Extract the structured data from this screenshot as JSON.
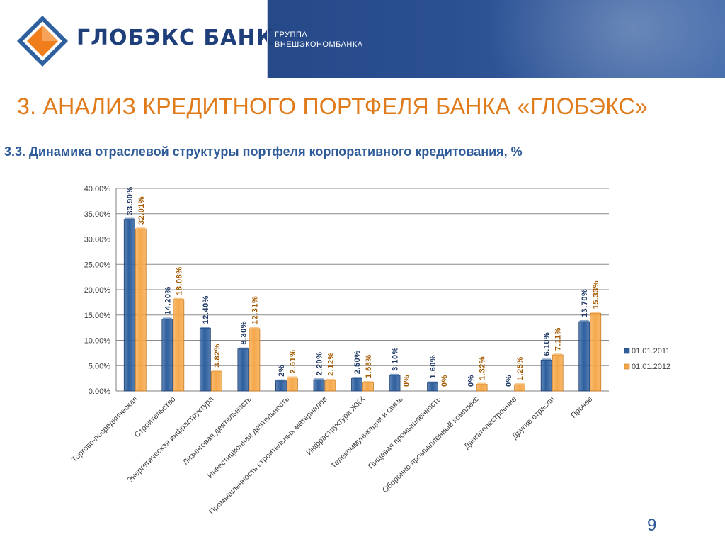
{
  "header": {
    "bank_name": "ГЛОБЭКС БАНК",
    "group_line1": "ГРУППА",
    "group_line2": "ВНЕШЭКОНОМБАНКА"
  },
  "title": "3. АНАЛИЗ КРЕДИТНОГО ПОРТФЕЛЯ БАНКА «ГЛОБЭКС»",
  "subtitle": "3.3. Динамика отраслевой структуры портфеля корпоративного кредитования, %",
  "page_number": "9",
  "chart_data": {
    "type": "bar",
    "categories": [
      "Торгово-посредническая",
      "Строительство",
      "Энергетическая инфраструктура",
      "Лизинговая деятельность",
      "Инвестиционная деятельность",
      "Промышленность строительных материалов",
      "Инфраструктура ЖКХ",
      "Телекоммуникации и связь",
      "Пищевая промышленность",
      "Оборонно-промышленный комплекс",
      "Двигателестроение",
      "Другие отрасли",
      "Прочее"
    ],
    "series": [
      {
        "name": "01.01.2011",
        "color": "#2e5f9e",
        "values": [
          33.9,
          14.2,
          12.4,
          8.3,
          2,
          2.2,
          2.5,
          3.1,
          1.6,
          0,
          0,
          6.1,
          13.7
        ],
        "labels": [
          "33.90%",
          "14.20%",
          "12.40%",
          "8.30%",
          "2%",
          "2.20%",
          "2.50%",
          "3.10%",
          "1.60%",
          "0%",
          "0%",
          "6.10%",
          "13.70%"
        ],
        "label_color": "#1f3864"
      },
      {
        "name": "01.01.2012",
        "color": "#f5a84a",
        "values": [
          32.01,
          18.08,
          3.82,
          12.31,
          2.61,
          2.12,
          1.68,
          0,
          0,
          1.32,
          1.25,
          7.11,
          15.33
        ],
        "labels": [
          "32.01%",
          "18.08%",
          "3.82%",
          "12.31%",
          "2.61%",
          "2.12%",
          "1.68%",
          "0%",
          "0%",
          "1.32%",
          "1.25%",
          "7.11%",
          "15.33%"
        ],
        "label_color": "#a35a00"
      }
    ],
    "y_ticks": [
      "0.00%",
      "5.00%",
      "10.00%",
      "15.00%",
      "20.00%",
      "25.00%",
      "30.00%",
      "35.00%",
      "40.00%"
    ],
    "ylim": [
      0,
      40
    ],
    "y_step": 5,
    "grid": true,
    "legend_position": "right"
  }
}
